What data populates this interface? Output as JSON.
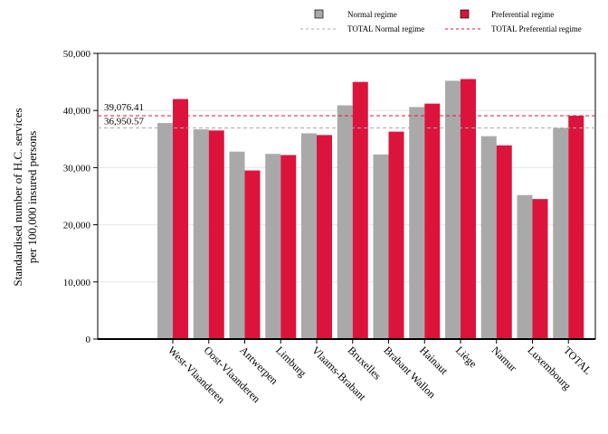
{
  "chart_data": {
    "type": "bar",
    "title": "",
    "xlabel": "",
    "ylabel": [
      "Standardised number of H.C. services",
      "per 100,000 insured persons"
    ],
    "ylim": [
      0,
      50000
    ],
    "yticks": [
      0,
      10000,
      20000,
      30000,
      40000,
      50000
    ],
    "ytick_labels": [
      "0",
      "10,000",
      "20,000",
      "30,000",
      "40,000",
      "50,000"
    ],
    "grid": true,
    "legend_position": "top",
    "categories": [
      "West-Vlaanderen",
      "Oost-Vlaanderen",
      "Antwerpen",
      "Limburg",
      "Vlaams-Brabant",
      "Bruxelles",
      "Brabant Wallon",
      "Hainaut",
      "Liège",
      "Namur",
      "Luxembourg",
      "TOTAL"
    ],
    "series": [
      {
        "name": "Normal regime",
        "color": "#a9a9a9",
        "values": [
          37800,
          36700,
          32800,
          32400,
          36000,
          40900,
          32300,
          40600,
          45200,
          35500,
          25200,
          36950.57
        ]
      },
      {
        "name": "Preferential regime",
        "color": "#dc143c",
        "values": [
          42000,
          36500,
          29500,
          32200,
          35700,
          45000,
          36300,
          41200,
          45500,
          33900,
          24500,
          39076.41
        ]
      }
    ],
    "reference_lines": [
      {
        "name": "TOTAL Normal regime",
        "value": 36950.57,
        "label": "36,950.57",
        "color": "#a9a9a9"
      },
      {
        "name": "TOTAL Preferential regime",
        "value": 39076.41,
        "label": "39,076.41",
        "color": "#dc143c"
      }
    ]
  }
}
